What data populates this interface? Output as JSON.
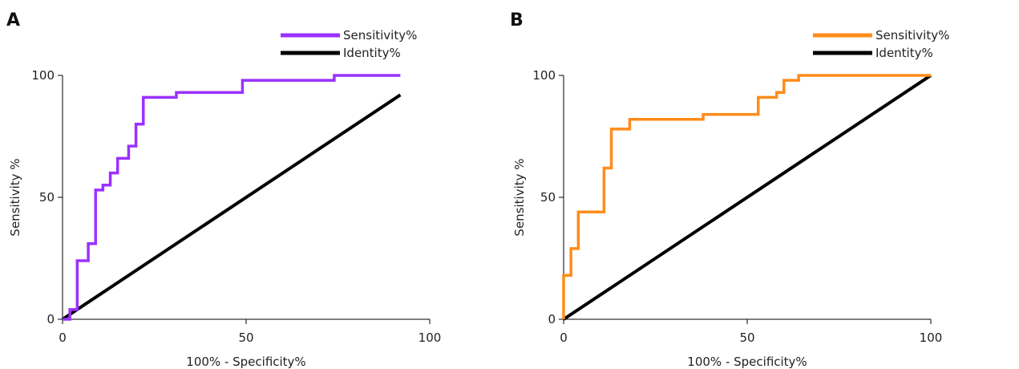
{
  "chart_data": [
    {
      "type": "line",
      "panel": "A",
      "xlabel": "100% - Specificity%",
      "ylabel": "Sensitivity %",
      "xlim": [
        0,
        100
      ],
      "ylim": [
        0,
        100
      ],
      "xticks": [
        "0",
        "50",
        "100"
      ],
      "yticks": [
        "0",
        "50",
        "100"
      ],
      "legend_position": "top-right",
      "series": [
        {
          "name": "Sensitivity%",
          "color": "#9b30ff",
          "x": [
            0,
            2,
            2,
            4,
            4,
            7,
            7,
            9,
            9,
            11,
            11,
            13,
            13,
            15,
            15,
            18,
            18,
            20,
            20,
            22,
            22,
            31,
            31,
            49,
            49,
            74,
            74,
            92
          ],
          "y": [
            0,
            0,
            4,
            4,
            24,
            24,
            31,
            31,
            53,
            53,
            55,
            55,
            60,
            60,
            66,
            66,
            71,
            71,
            80,
            80,
            91,
            91,
            93,
            93,
            98,
            98,
            100,
            100
          ]
        },
        {
          "name": "Identity%",
          "color": "#000000",
          "x": [
            0,
            92
          ],
          "y": [
            0,
            92
          ]
        }
      ]
    },
    {
      "type": "line",
      "panel": "B",
      "xlabel": "100% - Specificity%",
      "ylabel": "Sensitivity %",
      "xlim": [
        0,
        100
      ],
      "ylim": [
        0,
        100
      ],
      "xticks": [
        "0",
        "50",
        "100"
      ],
      "yticks": [
        "0",
        "50",
        "100"
      ],
      "legend_position": "top-right",
      "series": [
        {
          "name": "Sensitivity%",
          "color": "#ff8c1a",
          "x": [
            0,
            0,
            2,
            2,
            4,
            4,
            11,
            11,
            13,
            13,
            18,
            18,
            38,
            38,
            53,
            53,
            58,
            58,
            60,
            60,
            64,
            64,
            100
          ],
          "y": [
            0,
            18,
            18,
            29,
            29,
            44,
            44,
            62,
            62,
            78,
            78,
            82,
            82,
            84,
            84,
            91,
            91,
            93,
            93,
            98,
            98,
            100,
            100
          ]
        },
        {
          "name": "Identity%",
          "color": "#000000",
          "x": [
            0,
            100
          ],
          "y": [
            0,
            100
          ]
        }
      ]
    }
  ]
}
